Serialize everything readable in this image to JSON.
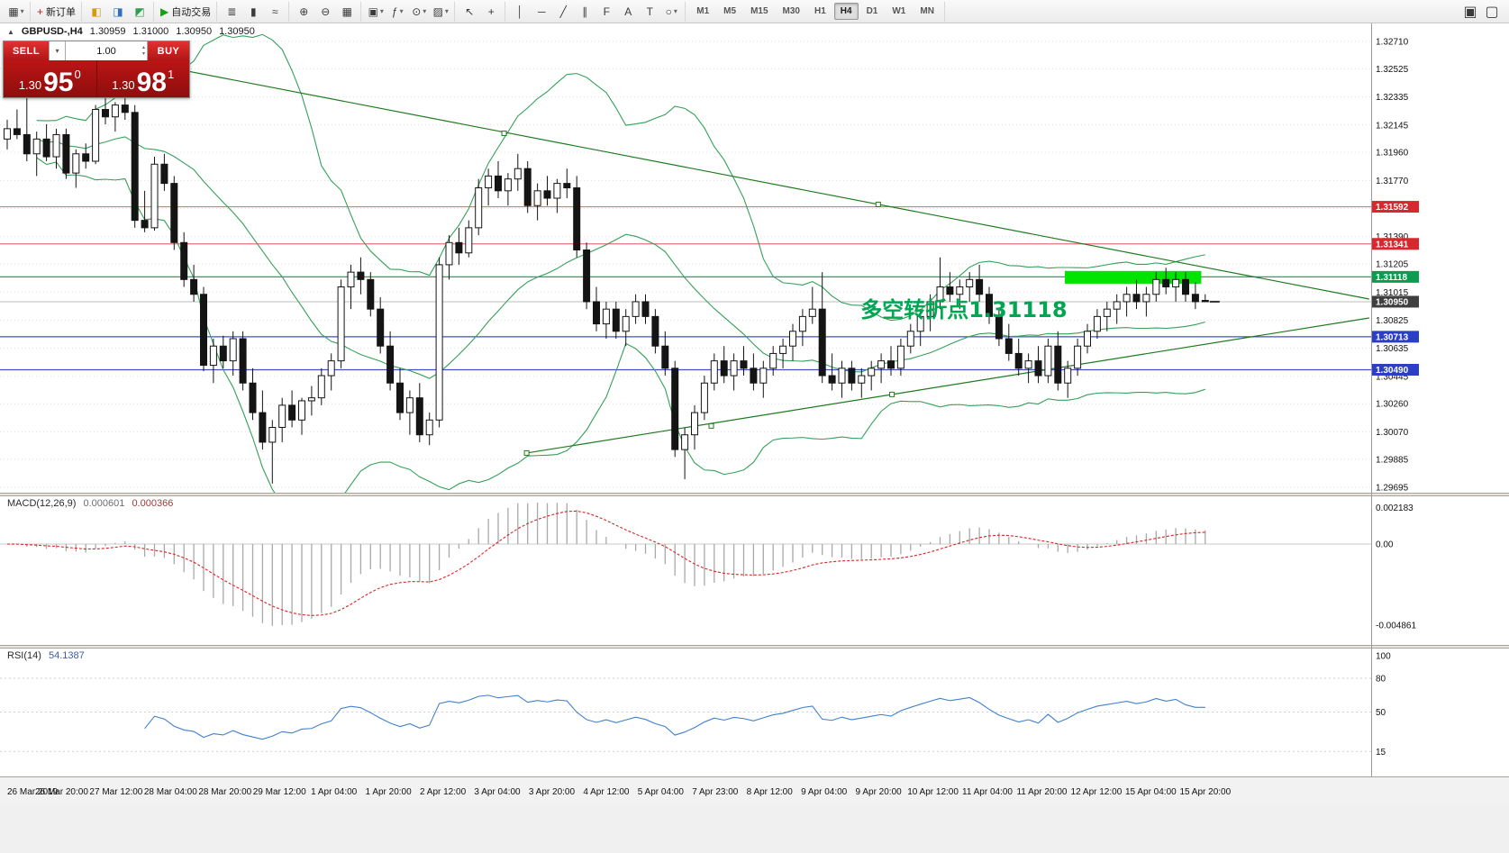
{
  "toolbar": {
    "chevron_glyph": "▾",
    "groups": [
      {
        "items": [
          {
            "n": "new-chart-icon",
            "g": "▦",
            "dd": true
          }
        ]
      },
      {
        "items": [
          {
            "n": "new-order-button",
            "g": "+",
            "gc": "#c02020",
            "label": "新订单"
          }
        ]
      },
      {
        "items": [
          {
            "n": "market-watch-icon",
            "g": "◧",
            "c": "#d79c00"
          },
          {
            "n": "data-window-icon",
            "g": "◨",
            "c": "#2f6fc0"
          },
          {
            "n": "navigator-icon",
            "g": "◩",
            "c": "#2f9e4f"
          }
        ]
      },
      {
        "items": [
          {
            "n": "autotrading-button",
            "g": "▶",
            "gc": "#18a018",
            "label": "自动交易"
          }
        ]
      },
      {
        "items": [
          {
            "n": "bar-chart-icon",
            "g": "≣"
          },
          {
            "n": "candlestick-icon",
            "g": "▮"
          },
          {
            "n": "line-chart-icon",
            "g": "≈"
          }
        ]
      },
      {
        "items": [
          {
            "n": "zoom-in-icon",
            "g": "⊕"
          },
          {
            "n": "zoom-out-icon",
            "g": "⊖"
          },
          {
            "n": "tile-windows-icon",
            "g": "▦"
          }
        ]
      },
      {
        "items": [
          {
            "n": "arrange-icon",
            "g": "▣",
            "dd": true
          },
          {
            "n": "indicators-icon",
            "g": "ƒ",
            "dd": true
          },
          {
            "n": "periods-icon",
            "g": "⊙",
            "dd": true
          },
          {
            "n": "templates-icon",
            "g": "▨",
            "dd": true
          }
        ]
      },
      {
        "items": [
          {
            "n": "cursor-icon",
            "g": "↖"
          },
          {
            "n": "crosshair-icon",
            "g": "+"
          }
        ]
      },
      {
        "items": [
          {
            "n": "vertical-line-icon",
            "g": "│"
          },
          {
            "n": "horizontal-line-icon",
            "g": "─"
          },
          {
            "n": "trendline-icon",
            "g": "╱"
          },
          {
            "n": "channel-icon",
            "g": "∥"
          },
          {
            "n": "fibonacci-icon",
            "g": "F"
          },
          {
            "n": "text-icon",
            "g": "A"
          },
          {
            "n": "label-icon",
            "g": "T"
          },
          {
            "n": "shapes-icon",
            "g": "○",
            "dd": true
          }
        ]
      }
    ],
    "right_icons": [
      {
        "n": "fullscreen-icon",
        "g": "▣"
      },
      {
        "n": "new-window-icon",
        "g": "▢"
      }
    ],
    "timeframes": [
      "M1",
      "M5",
      "M15",
      "M30",
      "H1",
      "H4",
      "D1",
      "W1",
      "MN"
    ],
    "active_timeframe": "H4"
  },
  "symbol_header": {
    "icon_glyph": "▲",
    "name": "GBPUSD-,H4",
    "open": "1.30959",
    "high": "1.31000",
    "low": "1.30950",
    "close": "1.30950"
  },
  "widget": {
    "sell_label": "SELL",
    "buy_label": "BUY",
    "volume": "1.00",
    "spinner_up": "▴",
    "spinner_down": "▾",
    "dropdown_glyph": "▾",
    "bid": {
      "prefix": "1.30",
      "big": "95",
      "sup": "0"
    },
    "ask": {
      "prefix": "1.30",
      "big": "98",
      "sup": "1"
    }
  },
  "macd": {
    "label": "MACD(12,26,9)",
    "value1": "0.000601",
    "value2": "0.000366",
    "axis": [
      "0.002183",
      "0.00",
      "-0.004861"
    ],
    "fast": 12,
    "slow": 26,
    "signal": 9
  },
  "rsi": {
    "label": "RSI(14)",
    "value": "54.1387",
    "axis": [
      100,
      80,
      50,
      15
    ],
    "period": 14
  },
  "colors": {
    "grid": "#dedede",
    "bull": "#ffffff",
    "bear": "#141414",
    "outline": "#141414",
    "band": "#35a05a",
    "trend": "#1e7a1e",
    "macd_hist": "#a8a8a8",
    "macd_signal": "#dd2222",
    "rsi_line": "#4080d0",
    "current_line": "#bdbdbd",
    "splitter": "#e8e5df",
    "splitter_edge": "#a8a49c",
    "time_strip": "#f2f2f2",
    "axis_border": "#9a9a9a"
  },
  "chart_data": {
    "type": "candlestick",
    "symbol": "GBPUSD-",
    "timeframe": "H4",
    "price_min": 1.29695,
    "price_max": 1.3271,
    "y_ticks": [
      1.3271,
      1.32525,
      1.32335,
      1.32145,
      1.3196,
      1.3177,
      1.3158,
      1.3139,
      1.31205,
      1.31015,
      1.30825,
      1.30635,
      1.30445,
      1.3026,
      1.3007,
      1.29885,
      1.29695
    ],
    "x_labels": [
      "26 Mar 2019",
      "26 Mar 20:00",
      "27 Mar 12:00",
      "28 Mar 04:00",
      "28 Mar 20:00",
      "29 Mar 12:00",
      "1 Apr 04:00",
      "1 Apr 20:00",
      "2 Apr 12:00",
      "3 Apr 04:00",
      "3 Apr 20:00",
      "4 Apr 12:00",
      "5 Apr 04:00",
      "7 Apr 23:00",
      "8 Apr 12:00",
      "9 Apr 04:00",
      "9 Apr 20:00",
      "10 Apr 12:00",
      "11 Apr 04:00",
      "11 Apr 20:00",
      "12 Apr 12:00",
      "15 Apr 04:00",
      "15 Apr 20:00"
    ],
    "candles": [
      [
        1.3205,
        1.3218,
        1.3198,
        1.3212
      ],
      [
        1.3212,
        1.3225,
        1.3205,
        1.3208
      ],
      [
        1.3208,
        1.3233,
        1.319,
        1.3195
      ],
      [
        1.3195,
        1.321,
        1.318,
        1.3205
      ],
      [
        1.3205,
        1.3215,
        1.319,
        1.3193
      ],
      [
        1.3193,
        1.3212,
        1.3185,
        1.3208
      ],
      [
        1.3208,
        1.3212,
        1.3178,
        1.3182
      ],
      [
        1.3182,
        1.3198,
        1.3172,
        1.3195
      ],
      [
        1.3195,
        1.3202,
        1.3185,
        1.319
      ],
      [
        1.319,
        1.3228,
        1.3188,
        1.3225
      ],
      [
        1.3225,
        1.3233,
        1.3215,
        1.322
      ],
      [
        1.322,
        1.323,
        1.321,
        1.3228
      ],
      [
        1.3228,
        1.3235,
        1.3218,
        1.3223
      ],
      [
        1.3223,
        1.3228,
        1.3145,
        1.315
      ],
      [
        1.315,
        1.317,
        1.3142,
        1.3145
      ],
      [
        1.3145,
        1.3193,
        1.3143,
        1.3188
      ],
      [
        1.3188,
        1.3195,
        1.317,
        1.3175
      ],
      [
        1.3175,
        1.318,
        1.313,
        1.3135
      ],
      [
        1.3135,
        1.3142,
        1.3105,
        1.311
      ],
      [
        1.311,
        1.312,
        1.3095,
        1.31
      ],
      [
        1.31,
        1.3105,
        1.3048,
        1.3052
      ],
      [
        1.3052,
        1.307,
        1.304,
        1.3065
      ],
      [
        1.3065,
        1.3072,
        1.305,
        1.3055
      ],
      [
        1.3055,
        1.3075,
        1.3045,
        1.307
      ],
      [
        1.307,
        1.3075,
        1.3035,
        1.304
      ],
      [
        1.304,
        1.305,
        1.3015,
        1.302
      ],
      [
        1.302,
        1.3035,
        1.2995,
        1.3
      ],
      [
        1.3,
        1.3015,
        1.2972,
        1.301
      ],
      [
        1.301,
        1.303,
        1.3,
        1.3025
      ],
      [
        1.3025,
        1.3035,
        1.301,
        1.3015
      ],
      [
        1.3015,
        1.303,
        1.3005,
        1.3028
      ],
      [
        1.3028,
        1.3038,
        1.3018,
        1.303
      ],
      [
        1.303,
        1.305,
        1.3025,
        1.3045
      ],
      [
        1.3045,
        1.306,
        1.3035,
        1.3055
      ],
      [
        1.3055,
        1.311,
        1.305,
        1.3105
      ],
      [
        1.3105,
        1.312,
        1.309,
        1.3115
      ],
      [
        1.3115,
        1.3125,
        1.31,
        1.311
      ],
      [
        1.311,
        1.3115,
        1.3085,
        1.309
      ],
      [
        1.309,
        1.3098,
        1.306,
        1.3065
      ],
      [
        1.3065,
        1.3075,
        1.3035,
        1.304
      ],
      [
        1.304,
        1.305,
        1.3015,
        1.302
      ],
      [
        1.302,
        1.3035,
        1.3005,
        1.303
      ],
      [
        1.303,
        1.304,
        1.3,
        1.3005
      ],
      [
        1.3005,
        1.302,
        1.2998,
        1.3015
      ],
      [
        1.3015,
        1.3125,
        1.301,
        1.312
      ],
      [
        1.312,
        1.314,
        1.311,
        1.3135
      ],
      [
        1.3135,
        1.3145,
        1.312,
        1.3128
      ],
      [
        1.3128,
        1.315,
        1.3125,
        1.3145
      ],
      [
        1.3145,
        1.3178,
        1.314,
        1.3172
      ],
      [
        1.3172,
        1.3185,
        1.316,
        1.318
      ],
      [
        1.318,
        1.319,
        1.3165,
        1.317
      ],
      [
        1.317,
        1.3182,
        1.316,
        1.3178
      ],
      [
        1.3178,
        1.3195,
        1.317,
        1.3185
      ],
      [
        1.3185,
        1.319,
        1.3155,
        1.316
      ],
      [
        1.316,
        1.3175,
        1.315,
        1.317
      ],
      [
        1.317,
        1.318,
        1.316,
        1.3165
      ],
      [
        1.3165,
        1.3178,
        1.3155,
        1.3175
      ],
      [
        1.3175,
        1.3185,
        1.3165,
        1.3172
      ],
      [
        1.3172,
        1.318,
        1.3125,
        1.313
      ],
      [
        1.313,
        1.3135,
        1.309,
        1.3095
      ],
      [
        1.3095,
        1.3105,
        1.3075,
        1.308
      ],
      [
        1.308,
        1.3095,
        1.307,
        1.309
      ],
      [
        1.309,
        1.3095,
        1.307,
        1.3075
      ],
      [
        1.3075,
        1.309,
        1.3065,
        1.3085
      ],
      [
        1.3085,
        1.31,
        1.308,
        1.3095
      ],
      [
        1.3095,
        1.31,
        1.308,
        1.3085
      ],
      [
        1.3085,
        1.309,
        1.306,
        1.3065
      ],
      [
        1.3065,
        1.3075,
        1.3045,
        1.305
      ],
      [
        1.305,
        1.3055,
        1.299,
        1.2995
      ],
      [
        1.2995,
        1.301,
        1.2975,
        1.3005
      ],
      [
        1.3005,
        1.3025,
        1.2995,
        1.302
      ],
      [
        1.302,
        1.3045,
        1.3015,
        1.304
      ],
      [
        1.304,
        1.306,
        1.3035,
        1.3055
      ],
      [
        1.3055,
        1.3065,
        1.304,
        1.3045
      ],
      [
        1.3045,
        1.306,
        1.3035,
        1.3055
      ],
      [
        1.3055,
        1.3065,
        1.3045,
        1.305
      ],
      [
        1.305,
        1.306,
        1.3035,
        1.304
      ],
      [
        1.304,
        1.3055,
        1.303,
        1.305
      ],
      [
        1.305,
        1.3065,
        1.3045,
        1.306
      ],
      [
        1.306,
        1.307,
        1.305,
        1.3065
      ],
      [
        1.3065,
        1.308,
        1.3055,
        1.3075
      ],
      [
        1.3075,
        1.309,
        1.3065,
        1.3085
      ],
      [
        1.3085,
        1.3105,
        1.308,
        1.309
      ],
      [
        1.309,
        1.3115,
        1.304,
        1.3045
      ],
      [
        1.3045,
        1.306,
        1.3035,
        1.304
      ],
      [
        1.304,
        1.3055,
        1.303,
        1.305
      ],
      [
        1.305,
        1.3055,
        1.3035,
        1.304
      ],
      [
        1.304,
        1.305,
        1.303,
        1.3045
      ],
      [
        1.3045,
        1.3055,
        1.3035,
        1.305
      ],
      [
        1.305,
        1.306,
        1.304,
        1.3055
      ],
      [
        1.3055,
        1.3065,
        1.3045,
        1.305
      ],
      [
        1.305,
        1.307,
        1.3045,
        1.3065
      ],
      [
        1.3065,
        1.308,
        1.306,
        1.3075
      ],
      [
        1.3075,
        1.309,
        1.3065,
        1.3085
      ],
      [
        1.3085,
        1.31,
        1.3075,
        1.3095
      ],
      [
        1.3095,
        1.3125,
        1.309,
        1.3105
      ],
      [
        1.3105,
        1.3115,
        1.3095,
        1.31
      ],
      [
        1.31,
        1.311,
        1.309,
        1.3105
      ],
      [
        1.3105,
        1.3115,
        1.3095,
        1.311
      ],
      [
        1.311,
        1.312,
        1.3095,
        1.31
      ],
      [
        1.31,
        1.3105,
        1.308,
        1.3085
      ],
      [
        1.3085,
        1.309,
        1.3065,
        1.307
      ],
      [
        1.307,
        1.308,
        1.3055,
        1.306
      ],
      [
        1.306,
        1.307,
        1.3045,
        1.305
      ],
      [
        1.305,
        1.306,
        1.304,
        1.3055
      ],
      [
        1.3055,
        1.3065,
        1.304,
        1.3045
      ],
      [
        1.3045,
        1.307,
        1.304,
        1.3065
      ],
      [
        1.3065,
        1.3075,
        1.3035,
        1.304
      ],
      [
        1.304,
        1.3055,
        1.303,
        1.305
      ],
      [
        1.305,
        1.307,
        1.3045,
        1.3065
      ],
      [
        1.3065,
        1.308,
        1.306,
        1.3075
      ],
      [
        1.3075,
        1.309,
        1.307,
        1.3085
      ],
      [
        1.3085,
        1.3095,
        1.3075,
        1.309
      ],
      [
        1.309,
        1.31,
        1.308,
        1.3095
      ],
      [
        1.3095,
        1.3105,
        1.3085,
        1.31
      ],
      [
        1.31,
        1.311,
        1.309,
        1.3095
      ],
      [
        1.3095,
        1.3105,
        1.3085,
        1.31
      ],
      [
        1.31,
        1.3115,
        1.3095,
        1.311
      ],
      [
        1.311,
        1.3118,
        1.31,
        1.3105
      ],
      [
        1.3105,
        1.3115,
        1.3095,
        1.311
      ],
      [
        1.311,
        1.3115,
        1.3095,
        1.31
      ],
      [
        1.31,
        1.3108,
        1.309,
        1.3095
      ],
      [
        1.30959,
        1.31,
        1.3095,
        1.3095
      ]
    ],
    "hlines": [
      {
        "price": 1.31592,
        "color": "#e57373",
        "tag_color": "#d7282d"
      },
      {
        "price": 1.31341,
        "color": "#e57373",
        "tag_color": "#d7282d"
      },
      {
        "price": 1.31118,
        "color": "#2da44e",
        "tag_color": "#0a9d4f"
      },
      {
        "price": 1.30713,
        "color": "#3f51c8",
        "tag_color": "#2b3fc4"
      },
      {
        "price": 1.3049,
        "color": "#3f51c8",
        "tag_color": "#2b3fc4"
      }
    ],
    "current_price": {
      "price": 1.3095,
      "line_color": "#bdbdbd",
      "tag_color": "#3f3f3f"
    },
    "trendlines": [
      {
        "b1": 16.5,
        "p1": 1.32533,
        "b2": 138.7,
        "p2": 1.30968,
        "handles": [
          [
            50.6,
            1.32089
          ],
          [
            88.7,
            1.31608
          ]
        ]
      },
      {
        "b1": 52.9,
        "p1": 1.29927,
        "b2": 138.7,
        "p2": 1.3084,
        "handles": [
          [
            52.9,
            1.29927
          ],
          [
            71.7,
            1.3011
          ],
          [
            90.1,
            1.30323
          ]
        ]
      }
    ],
    "bollinger": {
      "period": 20,
      "deviation": 2
    },
    "highlight": {
      "bar_start": 107.7,
      "bar_end": 121.6,
      "price_top": 1.31158,
      "price_bottom": 1.31072,
      "color": "#00e400"
    },
    "annotation": {
      "text": "多空转折点1.31118",
      "bar": 86.9,
      "price": 1.30845,
      "color": "#00a651",
      "font_size": 24
    }
  }
}
